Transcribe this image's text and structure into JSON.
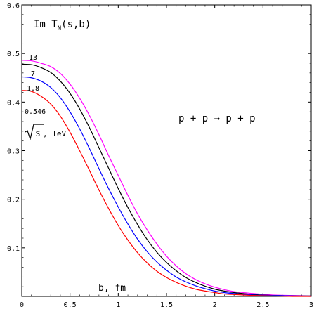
{
  "chart_data": {
    "type": "line",
    "title": "Im T",
    "title_sub": "N",
    "title_args": "(s,b)",
    "xlabel": "b, fm",
    "reaction": "p + p → p + p",
    "energy_label_root": "s",
    "energy_label_unit": ", TeV",
    "xlim": [
      0,
      3
    ],
    "ylim": [
      0,
      0.6
    ],
    "x_ticks": [
      0,
      0.5,
      1,
      1.5,
      2,
      2.5,
      3
    ],
    "x_tick_labels": [
      "0",
      "0.5",
      "1",
      "1.5",
      "2",
      "2.5",
      "3"
    ],
    "y_ticks": [
      0.1,
      0.2,
      0.3,
      0.4,
      0.5,
      0.6
    ],
    "y_tick_labels": [
      "0.1",
      "0.2",
      "0.3",
      "0.4",
      "0.5",
      "0.6"
    ],
    "grid": false,
    "series": [
      {
        "name": "13",
        "color": "#ff00ff",
        "x": [
          0,
          0.1,
          0.2,
          0.3,
          0.4,
          0.5,
          0.6,
          0.7,
          0.8,
          0.9,
          1.0,
          1.1,
          1.2,
          1.3,
          1.4,
          1.5,
          1.6,
          1.7,
          1.8,
          1.9,
          2.0,
          2.1,
          2.2,
          2.4,
          2.6,
          2.8,
          3.0
        ],
        "values": [
          0.486,
          0.485,
          0.48,
          0.473,
          0.459,
          0.437,
          0.408,
          0.373,
          0.333,
          0.29,
          0.249,
          0.208,
          0.17,
          0.137,
          0.108,
          0.083,
          0.063,
          0.047,
          0.035,
          0.026,
          0.019,
          0.014,
          0.01,
          0.006,
          0.003,
          0.002,
          0.001
        ]
      },
      {
        "name": "7",
        "color": "#000000",
        "x": [
          0,
          0.1,
          0.2,
          0.3,
          0.4,
          0.5,
          0.6,
          0.7,
          0.8,
          0.9,
          1.0,
          1.1,
          1.2,
          1.3,
          1.4,
          1.5,
          1.6,
          1.7,
          1.8,
          1.9,
          2.0,
          2.1,
          2.2,
          2.4,
          2.6,
          2.8,
          3.0
        ],
        "values": [
          0.478,
          0.477,
          0.471,
          0.461,
          0.443,
          0.418,
          0.386,
          0.348,
          0.306,
          0.264,
          0.222,
          0.183,
          0.148,
          0.117,
          0.091,
          0.07,
          0.053,
          0.039,
          0.029,
          0.021,
          0.015,
          0.011,
          0.008,
          0.004,
          0.002,
          0.001,
          0.001
        ]
      },
      {
        "name": "1.8",
        "color": "#0000ff",
        "x": [
          0,
          0.1,
          0.2,
          0.3,
          0.4,
          0.5,
          0.6,
          0.7,
          0.8,
          0.9,
          1.0,
          1.1,
          1.2,
          1.3,
          1.4,
          1.5,
          1.6,
          1.7,
          1.8,
          1.9,
          2.0,
          2.1,
          2.2,
          2.4,
          2.6,
          2.8,
          3.0
        ],
        "values": [
          0.452,
          0.45,
          0.443,
          0.43,
          0.409,
          0.38,
          0.345,
          0.305,
          0.263,
          0.222,
          0.184,
          0.149,
          0.118,
          0.092,
          0.071,
          0.054,
          0.04,
          0.03,
          0.022,
          0.016,
          0.011,
          0.008,
          0.006,
          0.003,
          0.002,
          0.001,
          0.0
        ]
      },
      {
        "name": "0.546",
        "color": "#ff0000",
        "x": [
          0,
          0.1,
          0.2,
          0.3,
          0.4,
          0.5,
          0.6,
          0.7,
          0.8,
          0.9,
          1.0,
          1.1,
          1.2,
          1.3,
          1.4,
          1.5,
          1.6,
          1.7,
          1.8,
          1.9,
          2.0,
          2.1,
          2.2,
          2.4,
          2.6,
          2.8,
          3.0
        ],
        "values": [
          0.424,
          0.422,
          0.412,
          0.396,
          0.371,
          0.338,
          0.3,
          0.26,
          0.219,
          0.181,
          0.146,
          0.116,
          0.09,
          0.069,
          0.052,
          0.039,
          0.029,
          0.021,
          0.015,
          0.011,
          0.008,
          0.005,
          0.004,
          0.002,
          0.001,
          0.0,
          0.0
        ]
      }
    ]
  }
}
